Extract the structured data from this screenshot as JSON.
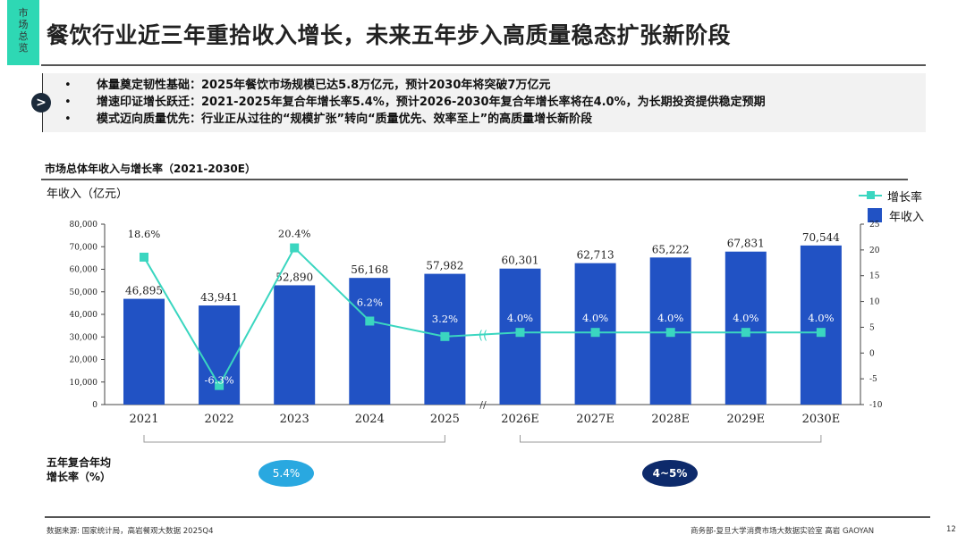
{
  "tag": [
    "市",
    "场",
    "总",
    "览"
  ],
  "title": "餐饮行业近三年重拾收入增长，未来五年步入高质量稳态扩张新阶段",
  "bullets": [
    "体量奠定韧性基础：2025年餐饮市场规模已达5.8万亿元，预计2030年将突破7万亿元",
    "增速印证增长跃迁：2021-2025年复合年增长率5.4%，预计2026-2030年复合年增长率将在4.0%，为长期投资提供稳定预期",
    "模式迈向质量优先：行业正从过往的“规模扩张”转向“质量优先、效率至上”的高质量增长新阶段"
  ],
  "chart_data": {
    "type": "bar+line",
    "title": "市场总体年收入与增长率（2021-2030E）",
    "ylabel": "年收入（亿元）",
    "categories": [
      "2021",
      "2022",
      "2023",
      "2024",
      "2025",
      "2026E",
      "2027E",
      "2028E",
      "2029E",
      "2030E"
    ],
    "series": [
      {
        "name": "年收入",
        "type": "bar",
        "axis": "left",
        "values": [
          46895,
          43941,
          52890,
          56168,
          57982,
          60301,
          62713,
          65222,
          67831,
          70544
        ],
        "labels": [
          "46,895",
          "43,941",
          "52,890",
          "56,168",
          "57,982",
          "60,301",
          "62,713",
          "65,222",
          "67,831",
          "70,544"
        ]
      },
      {
        "name": "增长率",
        "type": "line",
        "axis": "right",
        "values": [
          18.6,
          -6.3,
          20.4,
          6.2,
          3.2,
          4.0,
          4.0,
          4.0,
          4.0,
          4.0
        ],
        "labels": [
          "18.6%",
          "-6.3%",
          "20.4%",
          "6.2%",
          "3.2%",
          "4.0%",
          "4.0%",
          "4.0%",
          "4.0%",
          "4.0%"
        ]
      }
    ],
    "ylim_left": [
      0,
      80000
    ],
    "yticks_left": [
      "0",
      "10,000",
      "20,000",
      "30,000",
      "40,000",
      "50,000",
      "60,000",
      "70,000",
      "80,000"
    ],
    "ylim_right": [
      -10,
      25
    ],
    "yticks_right": [
      "-10",
      "-5",
      "0",
      "5",
      "10",
      "15",
      "20",
      "25"
    ],
    "legend": "top-right",
    "grid": false,
    "colors": {
      "bar": "#2152c4",
      "line": "#3ad6c0"
    }
  },
  "cagr": {
    "label_line1": "五年复合年均",
    "label_line2": "增长率（%）",
    "period1": "5.4%",
    "period2": "4~5%",
    "color1": "#29a8e0",
    "color2": "#0d2a6b"
  },
  "footer": {
    "source": "数据来源: 国家统计局，高岩餐观大数据 2025Q4",
    "org": "商务部-复旦大学消费市场大数据实验室   高岩 GAOYAN",
    "page": "12"
  }
}
